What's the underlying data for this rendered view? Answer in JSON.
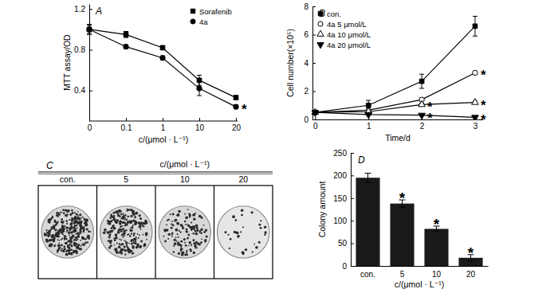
{
  "chart_data": [
    {
      "type": "line",
      "panel": "A",
      "x_label": "c/(μmol · L⁻¹)",
      "y_label": "MTT assay/OD",
      "categories": [
        "0",
        "0.1",
        "1",
        "10",
        "20"
      ],
      "ylim": [
        0.1,
        1.25
      ],
      "yticks": [
        0.4,
        0.8,
        1.2
      ],
      "legend": "upper right",
      "series": [
        {
          "name": "Sorafenib",
          "color": "#000000",
          "marker": "square",
          "line_style": "solid",
          "values": [
            1.0,
            0.95,
            0.82,
            0.5,
            0.33
          ],
          "errors": [
            0.04,
            0.03,
            0.02,
            0.05,
            0.02
          ]
        },
        {
          "name": "4a",
          "color": "#000000",
          "marker": "circle",
          "line_style": "solid",
          "values": [
            1.0,
            0.83,
            0.72,
            0.42,
            0.24
          ],
          "errors": [
            0.05,
            0.02,
            0.02,
            0.07,
            0.02
          ],
          "significance": [
            null,
            null,
            null,
            null,
            "*"
          ]
        }
      ]
    },
    {
      "type": "line",
      "panel": "B",
      "x_label": "Time/d",
      "y_label": "Cell number(×10⁵)",
      "x": [
        0,
        1,
        2,
        3
      ],
      "xlim": [
        -0.05,
        3.15
      ],
      "xticks": [
        0,
        1,
        2,
        3
      ],
      "ylim": [
        0,
        8
      ],
      "yticks": [
        0,
        2,
        4,
        6,
        8
      ],
      "legend": "upper left",
      "series": [
        {
          "name": "con.",
          "color": "#000000",
          "marker": "square",
          "line_style": "solid",
          "values": [
            0.5,
            1.0,
            2.7,
            6.6
          ],
          "errors": [
            0.05,
            0.35,
            0.5,
            0.7
          ]
        },
        {
          "name": "4a 5 μmol/L",
          "color": "#000000",
          "marker": "circle-open",
          "line_style": "solid",
          "values": [
            0.5,
            0.65,
            1.4,
            3.3
          ],
          "errors": [
            0.05,
            0.1,
            0.1,
            0.1
          ],
          "significance": [
            null,
            null,
            null,
            "*"
          ]
        },
        {
          "name": "4a 10 μmol/L",
          "color": "#000000",
          "marker": "triangle-open",
          "line_style": "solid",
          "values": [
            0.5,
            0.55,
            1.05,
            1.2
          ],
          "errors": [
            0.05,
            0.05,
            0.1,
            0.1
          ],
          "significance": [
            null,
            null,
            "*",
            "*"
          ]
        },
        {
          "name": "4a 20 μmol/L",
          "color": "#000000",
          "marker": "triangle-down",
          "line_style": "solid",
          "values": [
            0.5,
            0.35,
            0.3,
            0.15
          ],
          "errors": [
            0.05,
            0.05,
            0.05,
            0.05
          ],
          "significance": [
            null,
            null,
            "*",
            "*"
          ]
        }
      ]
    },
    {
      "type": "image",
      "panel": "C",
      "title": "c/(μmol · L⁻¹)",
      "categories": [
        "con.",
        "5",
        "10",
        "20"
      ]
    },
    {
      "type": "bar",
      "panel": "D",
      "x_label": "c/(μmol · L⁻¹)",
      "y_label": "Colony amount",
      "categories": [
        "con.",
        "5",
        "10",
        "20"
      ],
      "values": [
        195,
        138,
        82,
        18
      ],
      "errors": [
        10,
        8,
        6,
        7
      ],
      "significance": [
        null,
        "*",
        "*",
        "*"
      ],
      "color": "#1a1a1a",
      "ylim": [
        0,
        250
      ],
      "yticks": [
        0,
        50,
        100,
        150,
        200,
        250
      ]
    }
  ]
}
